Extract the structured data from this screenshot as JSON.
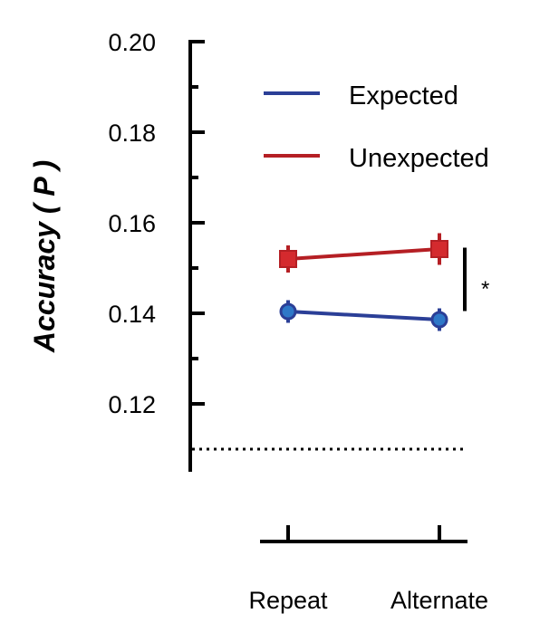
{
  "chart_data": {
    "type": "line",
    "categories": [
      "Repeat",
      "Alternate"
    ],
    "ylabel": "Accuracy ( P )",
    "ylim": [
      0.105,
      0.2
    ],
    "yticks": [
      "0.20",
      "0.18",
      "0.16",
      "0.14",
      "0.12"
    ],
    "yticks_values": [
      0.2,
      0.18,
      0.16,
      0.14,
      0.12
    ],
    "chance_level": 0.11,
    "legend_position": "top-right",
    "series": [
      {
        "name": "Expected",
        "values": [
          0.1404,
          0.1386
        ],
        "errors": [
          0.0025,
          0.0025
        ],
        "marker": "circle",
        "color": "#2b3f97",
        "fill": "#2e78c8"
      },
      {
        "name": "Unexpected",
        "values": [
          0.152,
          0.1542
        ],
        "errors": [
          0.003,
          0.0035
        ],
        "marker": "square",
        "color": "#b51f24",
        "fill": "#d42a2e"
      }
    ],
    "significance": {
      "label": "*",
      "from": 0.1545,
      "to": 0.1405
    }
  }
}
